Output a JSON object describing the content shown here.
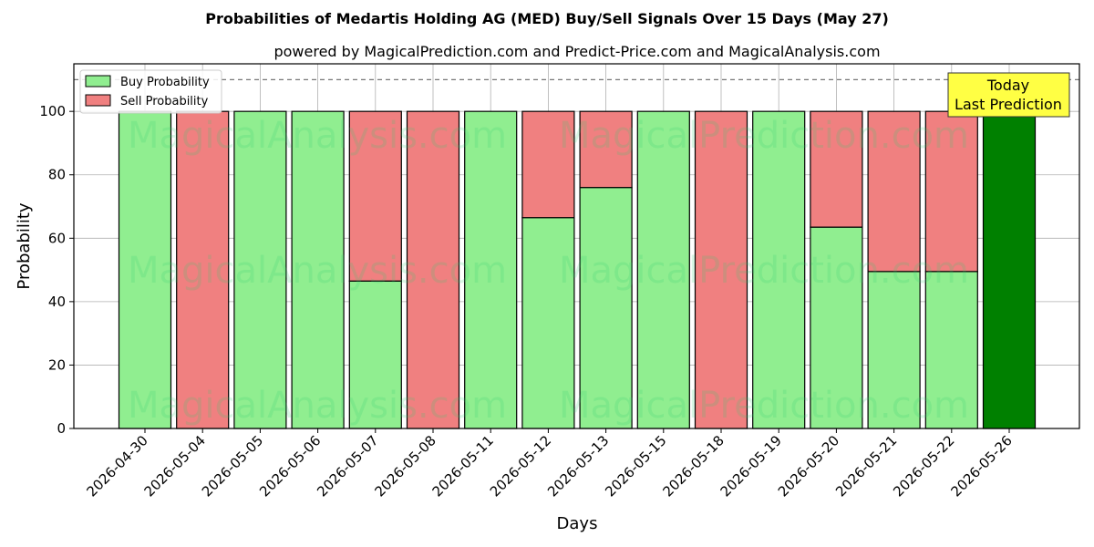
{
  "chart_data": {
    "type": "bar",
    "stacked": true,
    "title": "Probabilities of Medartis Holding AG (MED) Buy/Sell Signals Over 15 Days (May 27)",
    "subtitle": "powered by MagicalPrediction.com and Predict-Price.com and MagicalAnalysis.com",
    "xlabel": "Days",
    "ylabel": "Probability",
    "ylim": [
      0,
      115
    ],
    "yticks": [
      0,
      20,
      40,
      60,
      80,
      100
    ],
    "reference_line": 110,
    "grid": true,
    "legend_position": "top-left",
    "categories": [
      "2026-04-30",
      "2026-05-04",
      "2026-05-05",
      "2026-05-06",
      "2026-05-07",
      "2026-05-08",
      "2026-05-11",
      "2026-05-12",
      "2026-05-13",
      "2026-05-15",
      "2026-05-18",
      "2026-05-19",
      "2026-05-20",
      "2026-05-21",
      "2026-05-22",
      "2026-05-26"
    ],
    "series": [
      {
        "name": "Buy Probability",
        "color": "#90ee90",
        "values": [
          100,
          0,
          100,
          100,
          46.5,
          0,
          100,
          66.5,
          76,
          100,
          0,
          100,
          63.5,
          49.5,
          49.5,
          100
        ]
      },
      {
        "name": "Sell Probability",
        "color": "#f08080",
        "values": [
          0,
          100,
          0,
          0,
          53.5,
          100,
          0,
          33.5,
          24,
          0,
          100,
          0,
          36.5,
          50.5,
          50.5,
          0
        ]
      }
    ],
    "highlight": {
      "index": 15,
      "color": "#008000"
    },
    "annotation": {
      "line1": "Today",
      "line2": "Last Prediction",
      "background": "#ffff44"
    },
    "watermarks": [
      "MagicalAnalysis.com",
      "MagicalPrediction.com"
    ]
  }
}
